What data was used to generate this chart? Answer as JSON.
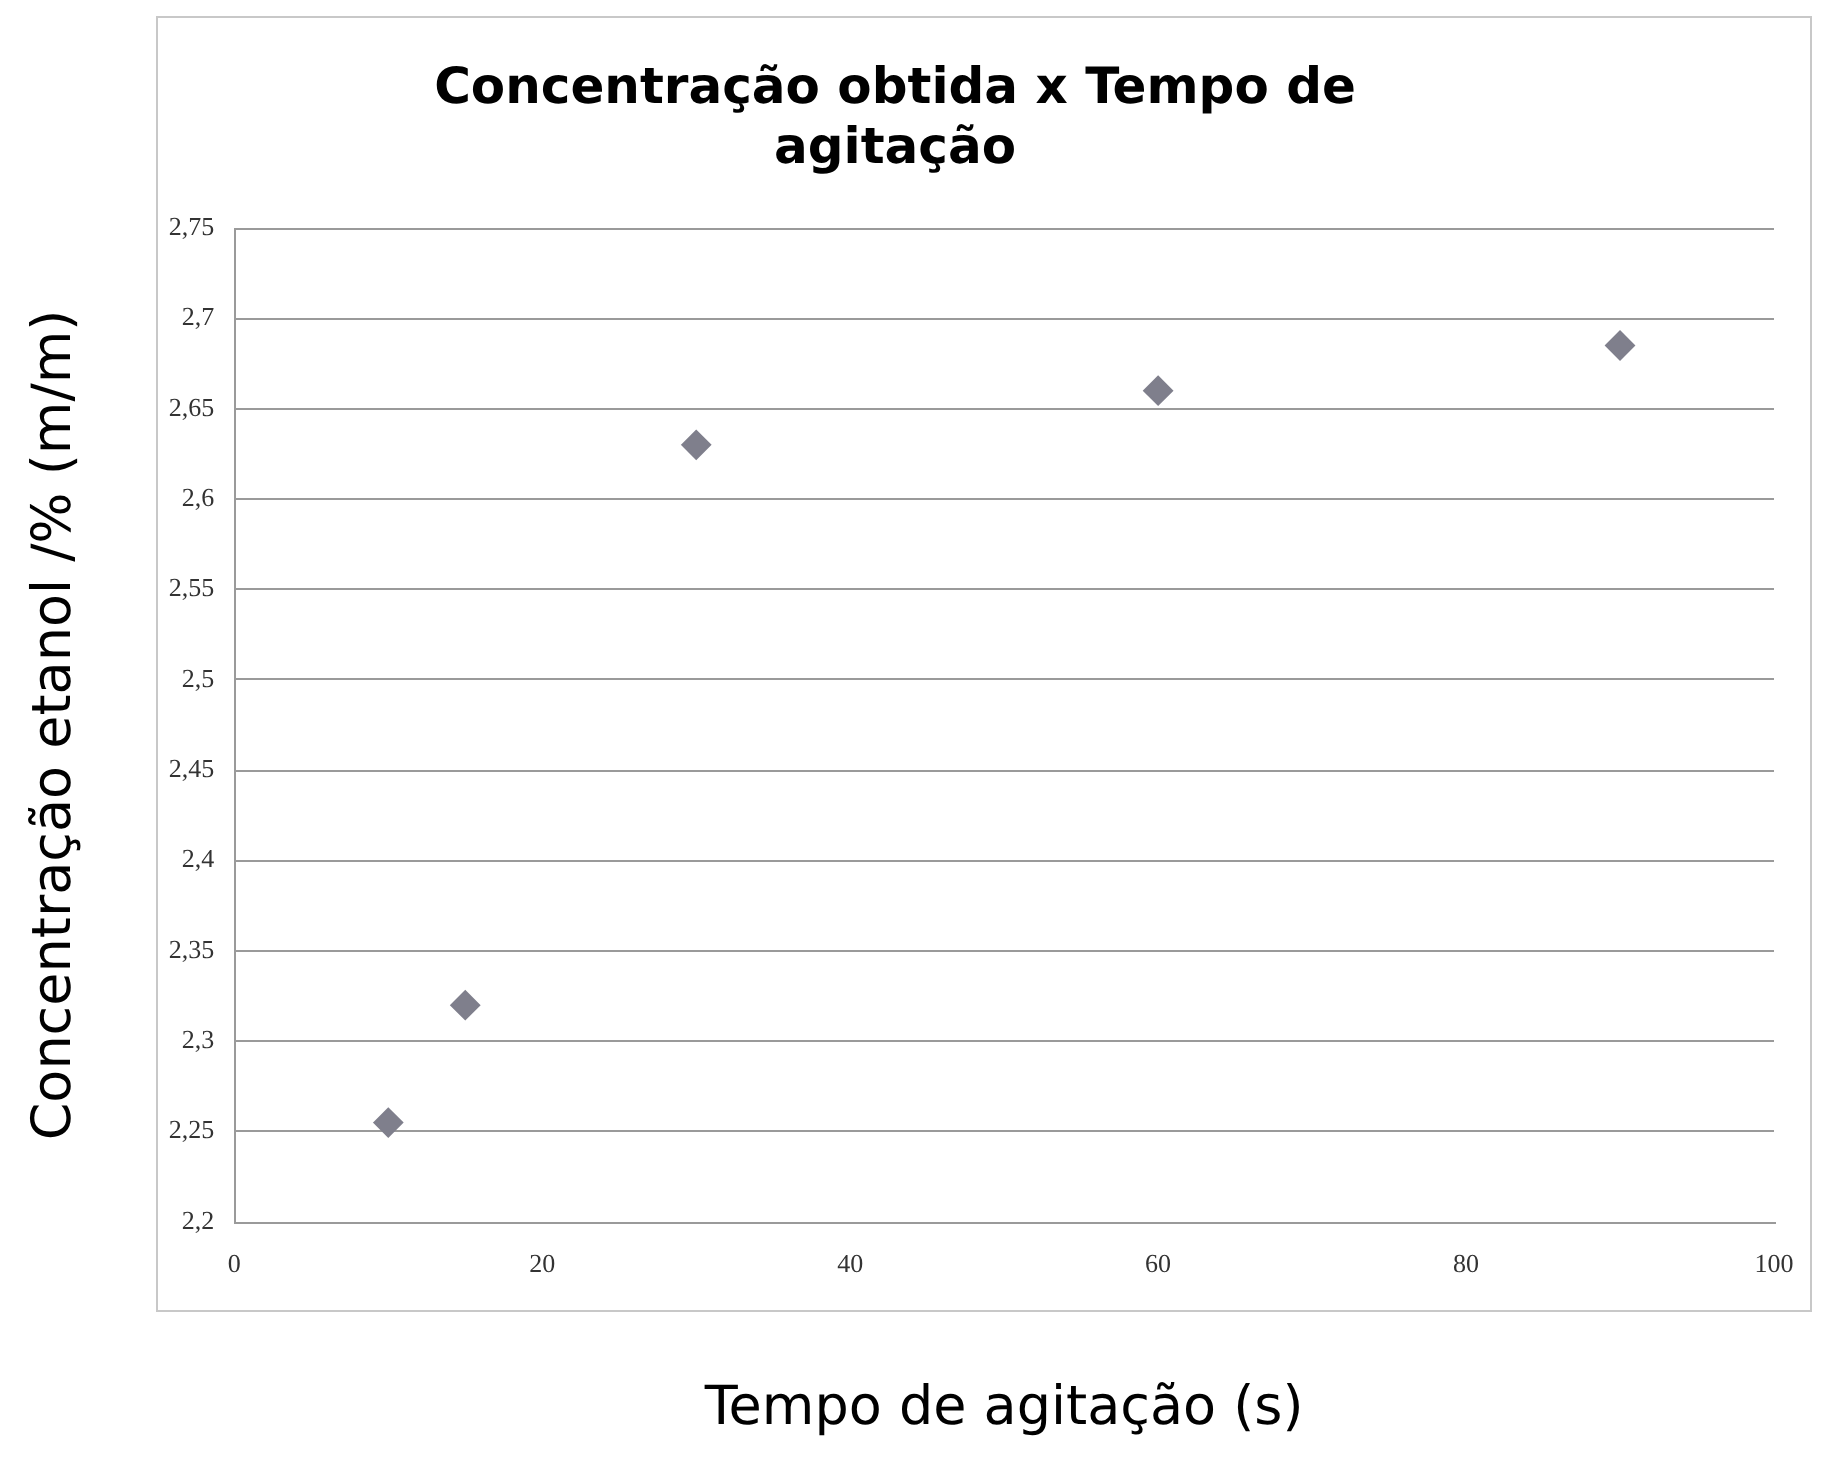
{
  "chart_data": {
    "type": "scatter",
    "title": "Concentração obtida x Tempo de agitação",
    "xlabel": "Tempo de agitação (s)",
    "ylabel": "Concentração etanol /% (m/m)",
    "x": [
      10,
      15,
      30,
      60,
      90
    ],
    "series": [
      {
        "color": "#7f7f8c",
        "values": [
          2.255,
          2.32,
          2.63,
          2.66,
          2.685
        ]
      }
    ],
    "xlim": [
      0,
      100
    ],
    "xticks": [
      0,
      20,
      40,
      60,
      80,
      100
    ],
    "ylim": [
      2.2,
      2.75
    ],
    "yticks": [
      {
        "value": 2.2,
        "label": "2,2"
      },
      {
        "value": 2.25,
        "label": "2,25"
      },
      {
        "value": 2.3,
        "label": "2,3"
      },
      {
        "value": 2.35,
        "label": "2,35"
      },
      {
        "value": 2.4,
        "label": "2,4"
      },
      {
        "value": 2.45,
        "label": "2,45"
      },
      {
        "value": 2.5,
        "label": "2,5"
      },
      {
        "value": 2.55,
        "label": "2,55"
      },
      {
        "value": 2.6,
        "label": "2,6"
      },
      {
        "value": 2.65,
        "label": "2,65"
      },
      {
        "value": 2.7,
        "label": "2,7"
      },
      {
        "value": 2.75,
        "label": "2,75"
      }
    ],
    "grid": "y",
    "marker": "diamond",
    "legend": false
  }
}
